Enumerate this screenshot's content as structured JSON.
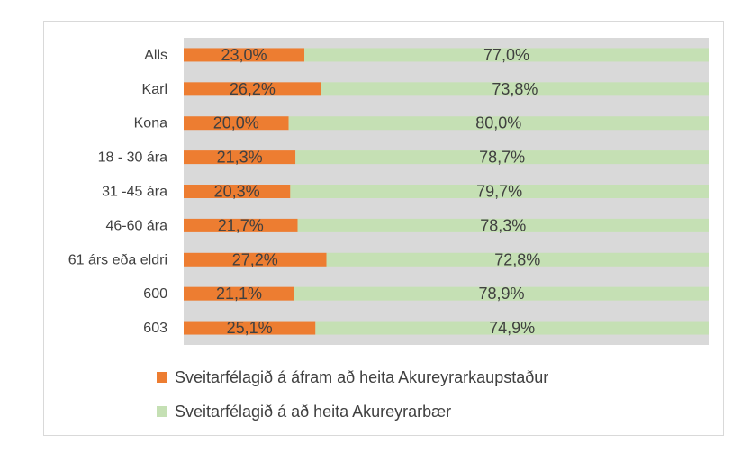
{
  "chart_data": {
    "type": "bar",
    "orientation": "horizontal",
    "stacked": "percent",
    "categories": [
      "Alls",
      "Karl",
      "Kona",
      "18 - 30 ára",
      "31 -45 ára",
      "46-60 ára",
      "61 árs eða eldri",
      "600",
      "603"
    ],
    "series": [
      {
        "name": "Sveitarfélagið á áfram að heita Akureyrarkaupstaður",
        "color": "#ed7d31",
        "values": [
          23.0,
          26.2,
          20.0,
          21.3,
          20.3,
          21.7,
          27.2,
          21.1,
          25.1
        ],
        "labels": [
          "23,0%",
          "26,2%",
          "20,0%",
          "21,3%",
          "20,3%",
          "21,7%",
          "27,2%",
          "21,1%",
          "25,1%"
        ]
      },
      {
        "name": "Sveitarfélagið á að heita Akureyrarbær",
        "color": "#c5e0b4",
        "values": [
          77.0,
          73.8,
          80.0,
          78.7,
          79.7,
          78.3,
          72.8,
          78.9,
          74.9
        ],
        "labels": [
          "77,0%",
          "73,8%",
          "80,0%",
          "78,7%",
          "79,7%",
          "78,3%",
          "72,8%",
          "78,9%",
          "74,9%"
        ]
      }
    ],
    "xlim": [
      0,
      100
    ],
    "plot_background": "#d9d9d9",
    "legend": "bottom",
    "grid": false
  }
}
